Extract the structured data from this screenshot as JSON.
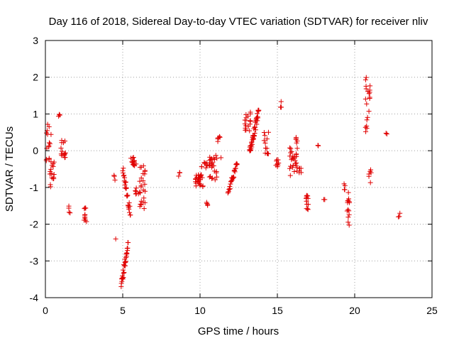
{
  "chart_data": {
    "type": "scatter",
    "title": "Day 116 of 2018, Sidereal Day-to-day VTEC variation (SDTVAR) for receiver nliv",
    "xlabel": "GPS time / hours",
    "ylabel": "SDTVAR / TECUs",
    "xlim": [
      0,
      25
    ],
    "ylim": [
      -4,
      3
    ],
    "xticks": [
      "0",
      "5",
      "10",
      "15",
      "20",
      "25"
    ],
    "yticks": [
      "3",
      "2",
      "1",
      "0",
      "-1",
      "-2",
      "-3",
      "-4"
    ],
    "grid": true,
    "marker": "+",
    "color": "#e00000",
    "clusters": [
      {
        "x": [
          0.05,
          0.45
        ],
        "y": [
          -0.7,
          0.8
        ],
        "n": 18,
        "trend": 0
      },
      {
        "x": [
          0.3,
          0.6
        ],
        "y": [
          -1.0,
          -0.3
        ],
        "n": 14,
        "trend": 0
      },
      {
        "x": [
          0.85,
          0.95
        ],
        "y": [
          0.92,
          1.0
        ],
        "n": 3,
        "trend": 0
      },
      {
        "x": [
          1.0,
          1.3
        ],
        "y": [
          -0.2,
          0.3
        ],
        "n": 15,
        "trend": 0
      },
      {
        "x": [
          1.5,
          1.6
        ],
        "y": [
          -1.75,
          -1.5
        ],
        "n": 4,
        "trend": 0
      },
      {
        "x": [
          2.5,
          2.7
        ],
        "y": [
          -1.95,
          -1.55
        ],
        "n": 10,
        "trend": 0
      },
      {
        "x": [
          4.4,
          4.5
        ],
        "y": [
          -0.85,
          -0.6
        ],
        "n": 3,
        "trend": 0
      },
      {
        "x": [
          4.5,
          4.55
        ],
        "y": [
          -2.45,
          -2.4
        ],
        "n": 1,
        "trend": 0
      },
      {
        "x": [
          4.9,
          5.35
        ],
        "y": [
          -3.7,
          -2.5
        ],
        "n": 30,
        "trend": 1
      },
      {
        "x": [
          5.0,
          5.5
        ],
        "y": [
          -1.75,
          -0.45
        ],
        "n": 26,
        "trend": -1
      },
      {
        "x": [
          5.5,
          5.9
        ],
        "y": [
          -0.45,
          -0.15
        ],
        "n": 14,
        "trend": 0
      },
      {
        "x": [
          5.8,
          6.1
        ],
        "y": [
          -1.2,
          -1.0
        ],
        "n": 8,
        "trend": 0
      },
      {
        "x": [
          6.05,
          6.45
        ],
        "y": [
          -1.7,
          -0.4
        ],
        "n": 24,
        "trend": 0
      },
      {
        "x": [
          8.6,
          8.7
        ],
        "y": [
          -0.75,
          -0.55
        ],
        "n": 3,
        "trend": 0
      },
      {
        "x": [
          9.7,
          10.2
        ],
        "y": [
          -1.0,
          -0.65
        ],
        "n": 30,
        "trend": 0
      },
      {
        "x": [
          10.1,
          10.6
        ],
        "y": [
          -0.5,
          -0.3
        ],
        "n": 10,
        "trend": 0
      },
      {
        "x": [
          10.35,
          10.55
        ],
        "y": [
          -1.5,
          -1.4
        ],
        "n": 4,
        "trend": 0
      },
      {
        "x": [
          10.6,
          11.1
        ],
        "y": [
          -0.8,
          -0.1
        ],
        "n": 26,
        "trend": 0
      },
      {
        "x": [
          11.1,
          11.3
        ],
        "y": [
          0.25,
          0.45
        ],
        "n": 6,
        "trend": 0
      },
      {
        "x": [
          11.3,
          11.4
        ],
        "y": [
          -0.22,
          -0.18
        ],
        "n": 1,
        "trend": 0
      },
      {
        "x": [
          11.8,
          12.4
        ],
        "y": [
          -1.15,
          -0.35
        ],
        "n": 26,
        "trend": 1
      },
      {
        "x": [
          12.9,
          13.3
        ],
        "y": [
          0.45,
          1.05
        ],
        "n": 18,
        "trend": 0
      },
      {
        "x": [
          13.2,
          13.8
        ],
        "y": [
          -0.1,
          1.1
        ],
        "n": 40,
        "trend": 1
      },
      {
        "x": [
          14.1,
          14.5
        ],
        "y": [
          -0.1,
          0.6
        ],
        "n": 12,
        "trend": 0
      },
      {
        "x": [
          14.9,
          15.1
        ],
        "y": [
          -0.5,
          -0.2
        ],
        "n": 8,
        "trend": 0
      },
      {
        "x": [
          15.2,
          15.3
        ],
        "y": [
          1.05,
          1.45
        ],
        "n": 4,
        "trend": 0
      },
      {
        "x": [
          15.8,
          16.3
        ],
        "y": [
          -0.7,
          0.1
        ],
        "n": 26,
        "trend": 0
      },
      {
        "x": [
          16.2,
          16.45
        ],
        "y": [
          0.2,
          0.45
        ],
        "n": 5,
        "trend": 0
      },
      {
        "x": [
          16.4,
          16.6
        ],
        "y": [
          -0.65,
          -0.45
        ],
        "n": 6,
        "trend": 0
      },
      {
        "x": [
          16.8,
          17.0
        ],
        "y": [
          -1.65,
          -1.2
        ],
        "n": 12,
        "trend": 0
      },
      {
        "x": [
          17.6,
          17.7
        ],
        "y": [
          0.1,
          0.15
        ],
        "n": 2,
        "trend": 0
      },
      {
        "x": [
          18.0,
          18.1
        ],
        "y": [
          -1.35,
          -1.3
        ],
        "n": 2,
        "trend": 0
      },
      {
        "x": [
          19.3,
          19.4
        ],
        "y": [
          -1.1,
          -0.7
        ],
        "n": 4,
        "trend": 0
      },
      {
        "x": [
          19.5,
          19.7
        ],
        "y": [
          -2.05,
          -1.0
        ],
        "n": 14,
        "trend": 0
      },
      {
        "x": [
          20.7,
          21.0
        ],
        "y": [
          0.4,
          2.0
        ],
        "n": 20,
        "trend": 0
      },
      {
        "x": [
          20.9,
          21.1
        ],
        "y": [
          -1.0,
          -0.45
        ],
        "n": 6,
        "trend": 0
      },
      {
        "x": [
          21.9,
          22.1
        ],
        "y": [
          0.44,
          0.48
        ],
        "n": 2,
        "trend": 0
      },
      {
        "x": [
          22.8,
          23.0
        ],
        "y": [
          -1.8,
          -1.65
        ],
        "n": 3,
        "trend": 0
      }
    ]
  }
}
